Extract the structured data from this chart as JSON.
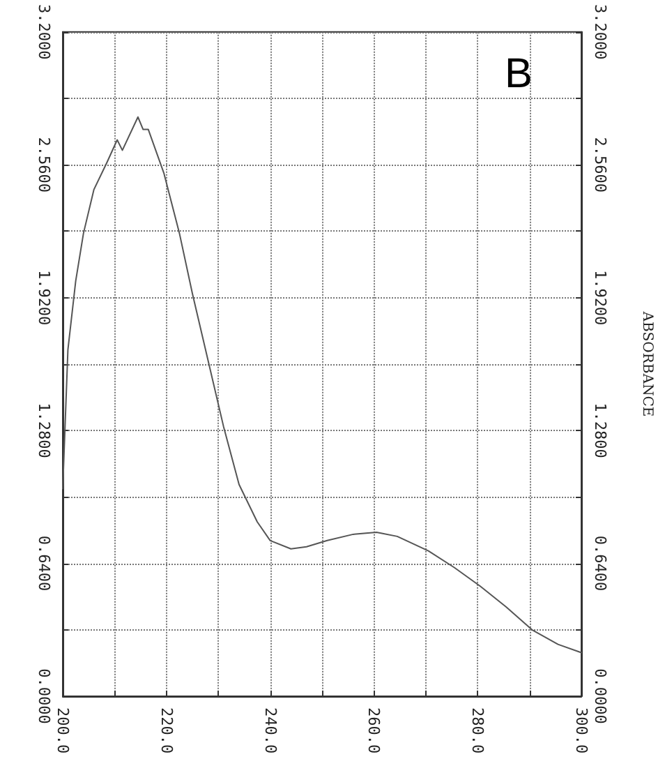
{
  "chart_data": {
    "type": "line",
    "y2label": "ABSORBANCE",
    "annotations": [
      "B"
    ],
    "series": [
      {
        "color": "#555555",
        "x": [
          200,
          201,
          202.5,
          204,
          206,
          208.5,
          210.5,
          211.5,
          214.5,
          215.5,
          216.5,
          219.5,
          222.5,
          225,
          228,
          231,
          234,
          237.5,
          240,
          244,
          247,
          251,
          256,
          260.5,
          264.5,
          270.5,
          275.5,
          280.5,
          285.5,
          290.5,
          295.5,
          300
        ],
        "values": [
          1.0,
          1.67,
          2.0,
          2.23,
          2.44,
          2.57,
          2.68,
          2.63,
          2.79,
          2.73,
          2.73,
          2.52,
          2.23,
          1.94,
          1.62,
          1.3,
          1.02,
          0.84,
          0.75,
          0.71,
          0.72,
          0.75,
          0.78,
          0.79,
          0.77,
          0.7,
          0.62,
          0.53,
          0.43,
          0.32,
          0.25,
          0.21
        ]
      }
    ],
    "xlim": [
      200,
      300
    ],
    "xticks": [
      {
        "value": 200,
        "label": "200.0"
      },
      {
        "value": 210,
        "label": null
      },
      {
        "value": 220,
        "label": "220.0"
      },
      {
        "value": 230,
        "label": null
      },
      {
        "value": 240,
        "label": "240.0"
      },
      {
        "value": 250,
        "label": null
      },
      {
        "value": 260,
        "label": "260.0"
      },
      {
        "value": 270,
        "label": null
      },
      {
        "value": 280,
        "label": "280.0"
      },
      {
        "value": 290,
        "label": null
      },
      {
        "value": 300,
        "label": "300.0"
      }
    ],
    "ylim": [
      0,
      3.2
    ],
    "yticks": [
      {
        "value": 0,
        "label": "0.0000"
      },
      {
        "value": 0.32,
        "label": null
      },
      {
        "value": 0.64,
        "label": "0.6400"
      },
      {
        "value": 0.96,
        "label": null
      },
      {
        "value": 1.28,
        "label": "1.2800"
      },
      {
        "value": 1.6,
        "label": null
      },
      {
        "value": 1.92,
        "label": "1.9200"
      },
      {
        "value": 2.24,
        "label": null
      },
      {
        "value": 2.56,
        "label": "2.5600"
      },
      {
        "value": 2.88,
        "label": null
      },
      {
        "value": 3.2,
        "label": "3.2000"
      }
    ],
    "y2lim": [
      0,
      3.2
    ],
    "y2ticks": [
      {
        "value": 0,
        "label": "0.0000"
      },
      {
        "value": 0.32,
        "label": null
      },
      {
        "value": 0.64,
        "label": "0.6400"
      },
      {
        "value": 0.96,
        "label": null
      },
      {
        "value": 1.28,
        "label": "1.2800"
      },
      {
        "value": 1.6,
        "label": null
      },
      {
        "value": 1.92,
        "label": "1.9200"
      },
      {
        "value": 2.24,
        "label": null
      },
      {
        "value": 2.56,
        "label": "2.5600"
      },
      {
        "value": 2.88,
        "label": null
      },
      {
        "value": 3.2,
        "label": "3.2000"
      }
    ],
    "grid": true,
    "marker": "none",
    "line_style": "solid"
  }
}
